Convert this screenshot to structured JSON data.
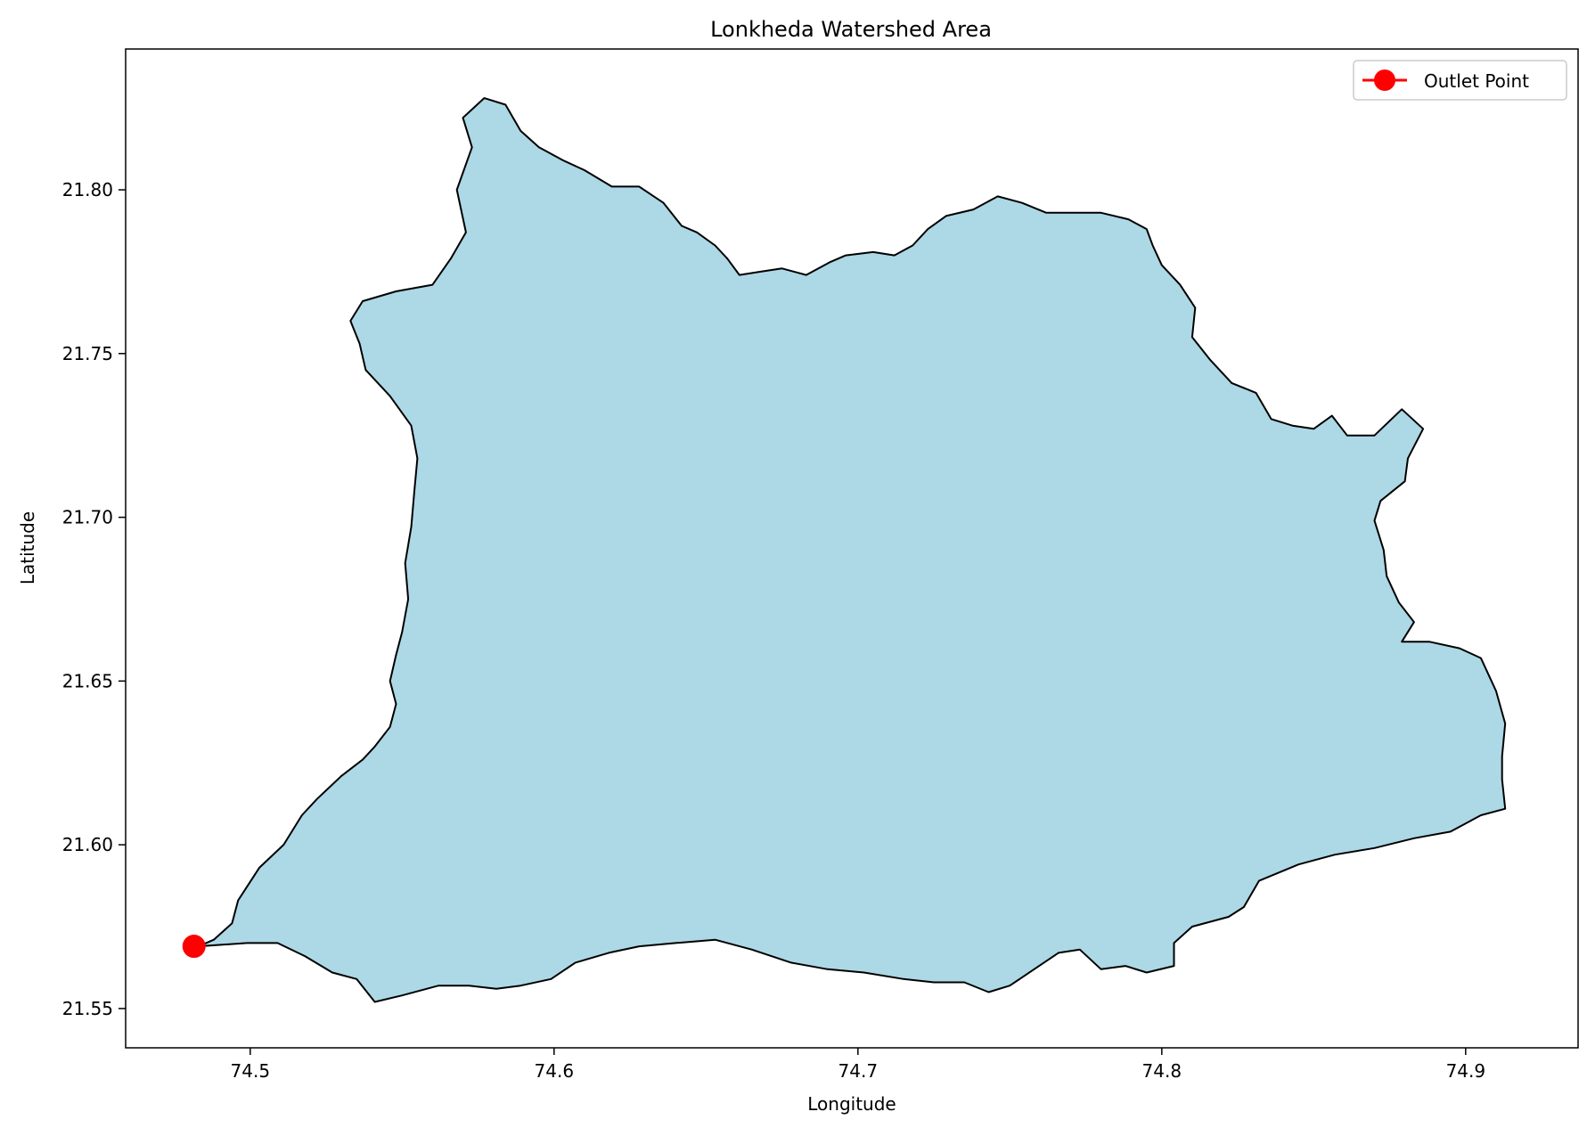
{
  "chart_data": {
    "type": "map",
    "title": "Lonkheda Watershed Area",
    "xlabel": "Longitude",
    "ylabel": "Latitude",
    "xlim": [
      74.459,
      74.937
    ],
    "ylim": [
      21.538,
      21.843
    ],
    "xticks": [
      74.5,
      74.6,
      74.7,
      74.8,
      74.9
    ],
    "xtick_labels": [
      "74.5",
      "74.6",
      "74.7",
      "74.8",
      "74.9"
    ],
    "yticks": [
      21.55,
      21.6,
      21.65,
      21.7,
      21.75,
      21.8
    ],
    "ytick_labels": [
      "21.55",
      "21.60",
      "21.65",
      "21.70",
      "21.75",
      "21.80"
    ],
    "watershed": {
      "name": "Lonkheda watershed",
      "fill": "#add8e6",
      "edge": "#000000",
      "boundary": [
        [
          74.483,
          21.569
        ],
        [
          74.488,
          21.571
        ],
        [
          74.494,
          21.576
        ],
        [
          74.496,
          21.583
        ],
        [
          74.503,
          21.593
        ],
        [
          74.511,
          21.6
        ],
        [
          74.517,
          21.609
        ],
        [
          74.522,
          21.614
        ],
        [
          74.53,
          21.621
        ],
        [
          74.537,
          21.626
        ],
        [
          74.541,
          21.63
        ],
        [
          74.546,
          21.636
        ],
        [
          74.548,
          21.643
        ],
        [
          74.546,
          21.65
        ],
        [
          74.548,
          21.658
        ],
        [
          74.55,
          21.665
        ],
        [
          74.552,
          21.675
        ],
        [
          74.551,
          21.686
        ],
        [
          74.553,
          21.697
        ],
        [
          74.554,
          21.708
        ],
        [
          74.555,
          21.718
        ],
        [
          74.553,
          21.728
        ],
        [
          74.546,
          21.737
        ],
        [
          74.538,
          21.745
        ],
        [
          74.536,
          21.753
        ],
        [
          74.533,
          21.76
        ],
        [
          74.537,
          21.766
        ],
        [
          74.548,
          21.769
        ],
        [
          74.56,
          21.771
        ],
        [
          74.566,
          21.779
        ],
        [
          74.571,
          21.787
        ],
        [
          74.568,
          21.8
        ],
        [
          74.573,
          21.813
        ],
        [
          74.57,
          21.822
        ],
        [
          74.577,
          21.828
        ],
        [
          74.584,
          21.826
        ],
        [
          74.589,
          21.818
        ],
        [
          74.595,
          21.813
        ],
        [
          74.603,
          21.809
        ],
        [
          74.61,
          21.806
        ],
        [
          74.619,
          21.801
        ],
        [
          74.628,
          21.801
        ],
        [
          74.636,
          21.796
        ],
        [
          74.642,
          21.789
        ],
        [
          74.647,
          21.787
        ],
        [
          74.653,
          21.783
        ],
        [
          74.657,
          21.779
        ],
        [
          74.661,
          21.774
        ],
        [
          74.668,
          21.775
        ],
        [
          74.675,
          21.776
        ],
        [
          74.683,
          21.774
        ],
        [
          74.691,
          21.778
        ],
        [
          74.696,
          21.78
        ],
        [
          74.705,
          21.781
        ],
        [
          74.712,
          21.78
        ],
        [
          74.718,
          21.783
        ],
        [
          74.723,
          21.788
        ],
        [
          74.729,
          21.792
        ],
        [
          74.738,
          21.794
        ],
        [
          74.746,
          21.798
        ],
        [
          74.754,
          21.796
        ],
        [
          74.762,
          21.793
        ],
        [
          74.771,
          21.793
        ],
        [
          74.78,
          21.793
        ],
        [
          74.789,
          21.791
        ],
        [
          74.795,
          21.788
        ],
        [
          74.797,
          21.783
        ],
        [
          74.8,
          21.777
        ],
        [
          74.806,
          21.771
        ],
        [
          74.811,
          21.764
        ],
        [
          74.81,
          21.755
        ],
        [
          74.816,
          21.748
        ],
        [
          74.823,
          21.741
        ],
        [
          74.831,
          21.738
        ],
        [
          74.836,
          21.73
        ],
        [
          74.843,
          21.728
        ],
        [
          74.85,
          21.727
        ],
        [
          74.856,
          21.731
        ],
        [
          74.861,
          21.725
        ],
        [
          74.87,
          21.725
        ],
        [
          74.879,
          21.733
        ],
        [
          74.886,
          21.727
        ],
        [
          74.881,
          21.718
        ],
        [
          74.88,
          21.711
        ],
        [
          74.872,
          21.705
        ],
        [
          74.87,
          21.699
        ],
        [
          74.873,
          21.69
        ],
        [
          74.874,
          21.682
        ],
        [
          74.878,
          21.674
        ],
        [
          74.883,
          21.668
        ],
        [
          74.879,
          21.662
        ],
        [
          74.888,
          21.662
        ],
        [
          74.898,
          21.66
        ],
        [
          74.905,
          21.657
        ],
        [
          74.91,
          21.647
        ],
        [
          74.913,
          21.637
        ],
        [
          74.912,
          21.627
        ],
        [
          74.912,
          21.62
        ],
        [
          74.913,
          21.611
        ],
        [
          74.905,
          21.609
        ],
        [
          74.895,
          21.604
        ],
        [
          74.883,
          21.602
        ],
        [
          74.87,
          21.599
        ],
        [
          74.857,
          21.597
        ],
        [
          74.845,
          21.594
        ],
        [
          74.832,
          21.589
        ],
        [
          74.827,
          21.581
        ],
        [
          74.822,
          21.578
        ],
        [
          74.81,
          21.575
        ],
        [
          74.804,
          21.57
        ],
        [
          74.804,
          21.563
        ],
        [
          74.795,
          21.561
        ],
        [
          74.788,
          21.563
        ],
        [
          74.78,
          21.562
        ],
        [
          74.773,
          21.568
        ],
        [
          74.766,
          21.567
        ],
        [
          74.758,
          21.562
        ],
        [
          74.75,
          21.557
        ],
        [
          74.743,
          21.555
        ],
        [
          74.735,
          21.558
        ],
        [
          74.725,
          21.558
        ],
        [
          74.715,
          21.559
        ],
        [
          74.702,
          21.561
        ],
        [
          74.69,
          21.562
        ],
        [
          74.678,
          21.564
        ],
        [
          74.665,
          21.568
        ],
        [
          74.653,
          21.571
        ],
        [
          74.64,
          21.57
        ],
        [
          74.628,
          21.569
        ],
        [
          74.618,
          21.567
        ],
        [
          74.607,
          21.564
        ],
        [
          74.599,
          21.559
        ],
        [
          74.589,
          21.557
        ],
        [
          74.581,
          21.556
        ],
        [
          74.572,
          21.557
        ],
        [
          74.562,
          21.557
        ],
        [
          74.55,
          21.554
        ],
        [
          74.541,
          21.552
        ],
        [
          74.535,
          21.559
        ],
        [
          74.527,
          21.561
        ],
        [
          74.518,
          21.566
        ],
        [
          74.509,
          21.57
        ],
        [
          74.499,
          21.57
        ]
      ]
    },
    "outlet": {
      "lon": 74.4815,
      "lat": 21.569,
      "color": "#ff0000"
    },
    "legend": {
      "location": "top-right",
      "entries": [
        {
          "label": "Outlet Point"
        }
      ]
    }
  }
}
